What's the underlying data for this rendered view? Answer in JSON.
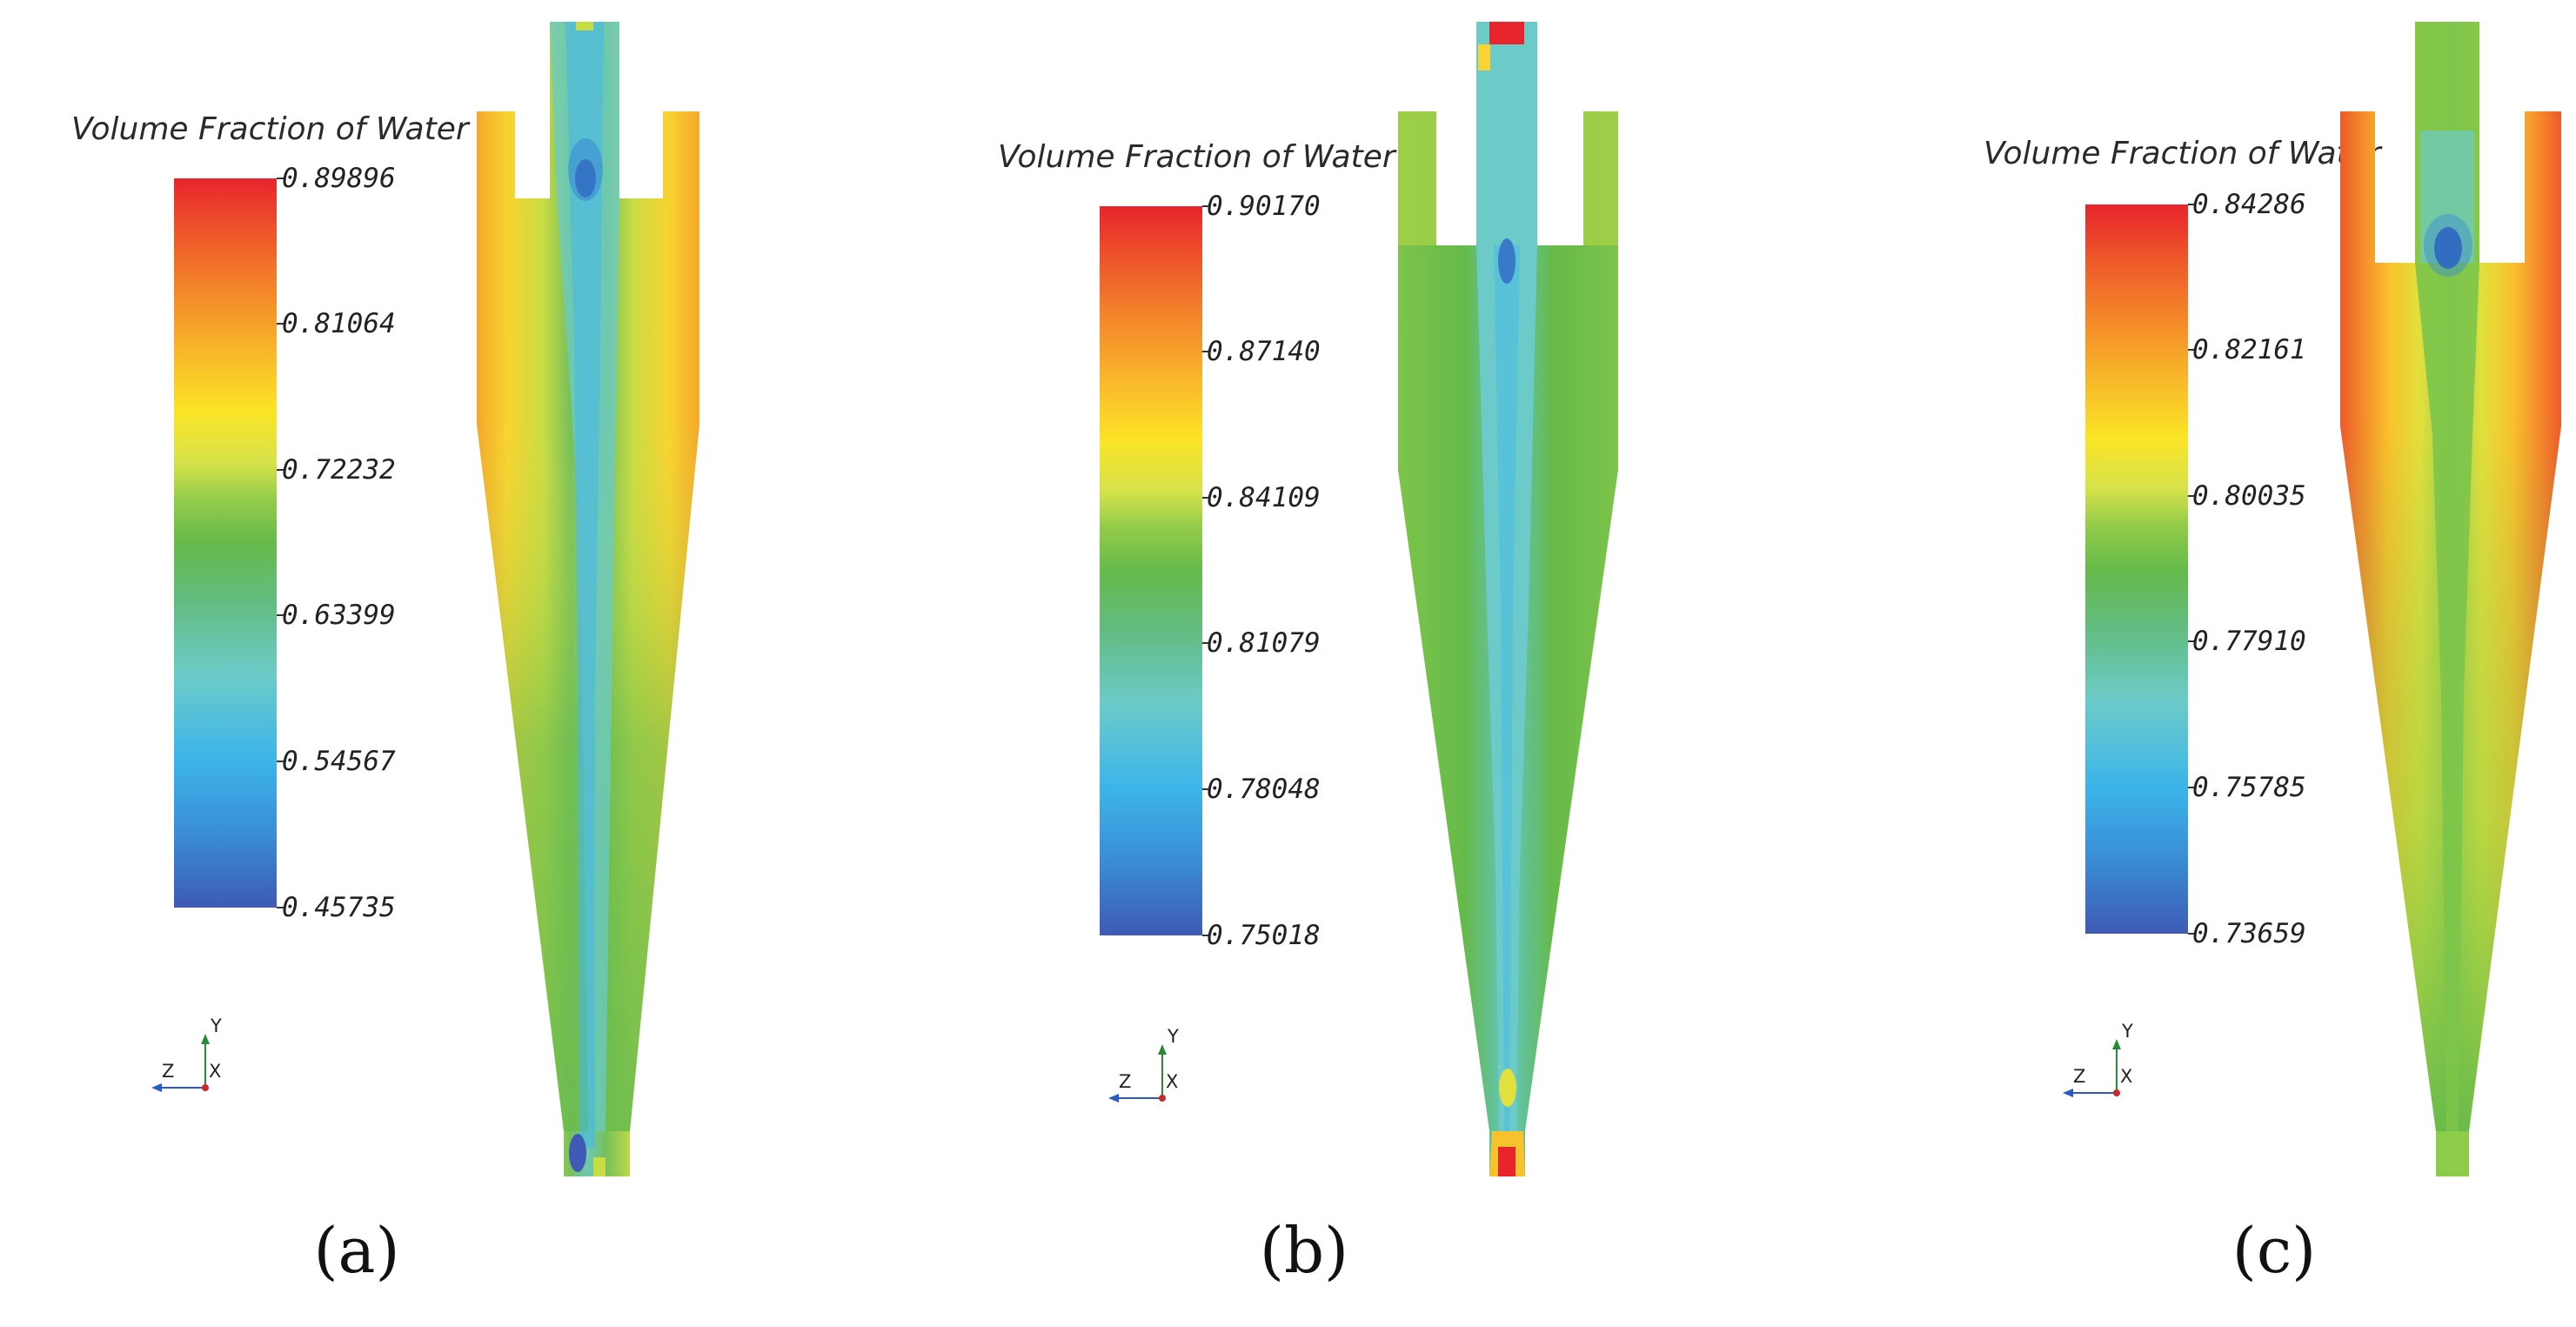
{
  "panels": [
    {
      "id": "a",
      "label": "(a)",
      "colorbar": {
        "title": "Volume Fraction of Water",
        "ticks": [
          "0.89896",
          "0.81064",
          "0.72232",
          "0.63399",
          "0.54567",
          "0.45735"
        ]
      },
      "axes_triad": {
        "y": "Y",
        "z": "Z",
        "x": "X"
      }
    },
    {
      "id": "b",
      "label": "(b)",
      "colorbar": {
        "title": "Volume Fraction of Water",
        "ticks": [
          "0.90170",
          "0.87140",
          "0.84109",
          "0.81079",
          "0.78048",
          "0.75018"
        ]
      },
      "axes_triad": {
        "y": "Y",
        "z": "Z",
        "x": "X"
      }
    },
    {
      "id": "c",
      "label": "(c)",
      "colorbar": {
        "title": "Volume Fraction of Water",
        "ticks": [
          "0.84286",
          "0.82161",
          "0.80035",
          "0.77910",
          "0.75785",
          "0.73659"
        ]
      },
      "axes_triad": {
        "y": "Y",
        "z": "Z",
        "x": "X"
      }
    }
  ],
  "colormap": [
    "#e8242c",
    "#ee5a2a",
    "#f48a2a",
    "#f8b82a",
    "#fbe426",
    "#d6e24a",
    "#94cc4a",
    "#66ba4a",
    "#62bc80",
    "#6ccbc8",
    "#3cb4ea",
    "#3a8cd4",
    "#3e5ab4"
  ]
}
